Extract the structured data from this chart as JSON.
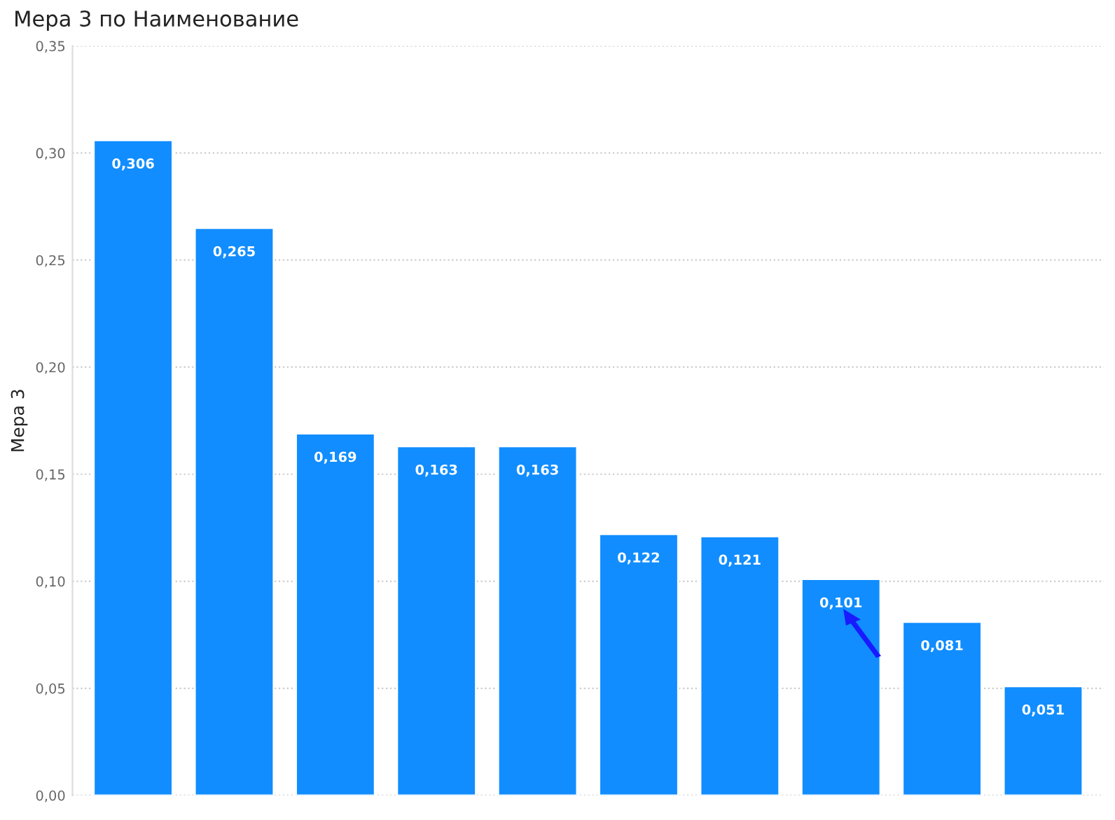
{
  "chart_data": {
    "type": "bar",
    "title": "Мера 3 по Наименование",
    "ylabel": "Мера 3",
    "categories": [
      null,
      null,
      null,
      null,
      null,
      null,
      null,
      null,
      null,
      null
    ],
    "values": [
      0.306,
      0.265,
      0.169,
      0.163,
      0.163,
      0.122,
      0.121,
      0.101,
      0.081,
      0.051
    ],
    "value_labels": [
      "0,306",
      "0,265",
      "0,169",
      "0,163",
      "0,163",
      "0,122",
      "0,121",
      "0,101",
      "0,081",
      "0,051"
    ],
    "color": "#118dff",
    "ylim": [
      0,
      0.35
    ],
    "yticks": [
      {
        "value": 0,
        "label": "0,00"
      },
      {
        "value": 0.05,
        "label": "0,05"
      },
      {
        "value": 0.1,
        "label": "0,10"
      },
      {
        "value": 0.15,
        "label": "0,15"
      },
      {
        "value": 0.2,
        "label": "0,20"
      },
      {
        "value": 0.25,
        "label": "0,25"
      },
      {
        "value": 0.3,
        "label": "0,30"
      },
      {
        "value": 0.35,
        "label": "0,35"
      }
    ],
    "grid": "y"
  }
}
